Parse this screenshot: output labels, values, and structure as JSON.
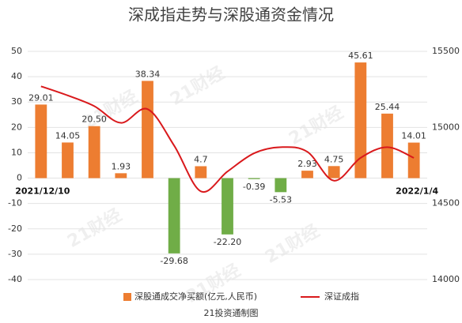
{
  "chart_data": {
    "type": "bar_line",
    "title": "深成指走势与深股通资金情况",
    "source": "21投资通制图",
    "watermark": "21财经",
    "categories": [
      "2021/12/10",
      null,
      null,
      null,
      null,
      null,
      null,
      null,
      null,
      null,
      null,
      null,
      null,
      null,
      "2022/1/4"
    ],
    "series": [
      {
        "name": "深股通成交净买额(亿元,人民币)",
        "type": "bar",
        "color": "#ed7d31",
        "negative_color": "#70ad47",
        "values": [
          29.01,
          14.05,
          20.5,
          1.93,
          38.34,
          -29.68,
          4.7,
          -22.2,
          -0.39,
          -5.53,
          2.93,
          4.75,
          45.61,
          25.44,
          14.01
        ],
        "value_labels": [
          "29.01",
          "14.05",
          "20.50",
          "1.93",
          "38.34",
          "-29.68",
          "4.7",
          "-22.20",
          "-0.39",
          "-5.53",
          "2.93",
          "4.75",
          "45.61",
          "25.44",
          "14.01"
        ]
      },
      {
        "name": "深证成指",
        "type": "line",
        "axis": "y2",
        "color": "#d9191c",
        "values": [
          15270,
          15210,
          15140,
          15030,
          15120,
          14880,
          14580,
          14710,
          14830,
          14870,
          14840,
          14650,
          14800,
          14870,
          14800
        ]
      }
    ],
    "ylim": [
      -40,
      50
    ],
    "yticks": [
      -40,
      -30,
      -20,
      -10,
      0,
      10,
      20,
      30,
      40,
      50
    ],
    "y2lim": [
      14000,
      15500
    ],
    "y2ticks": [
      14000,
      14500,
      15000,
      15500
    ],
    "grid": true,
    "legend": "bottom"
  }
}
